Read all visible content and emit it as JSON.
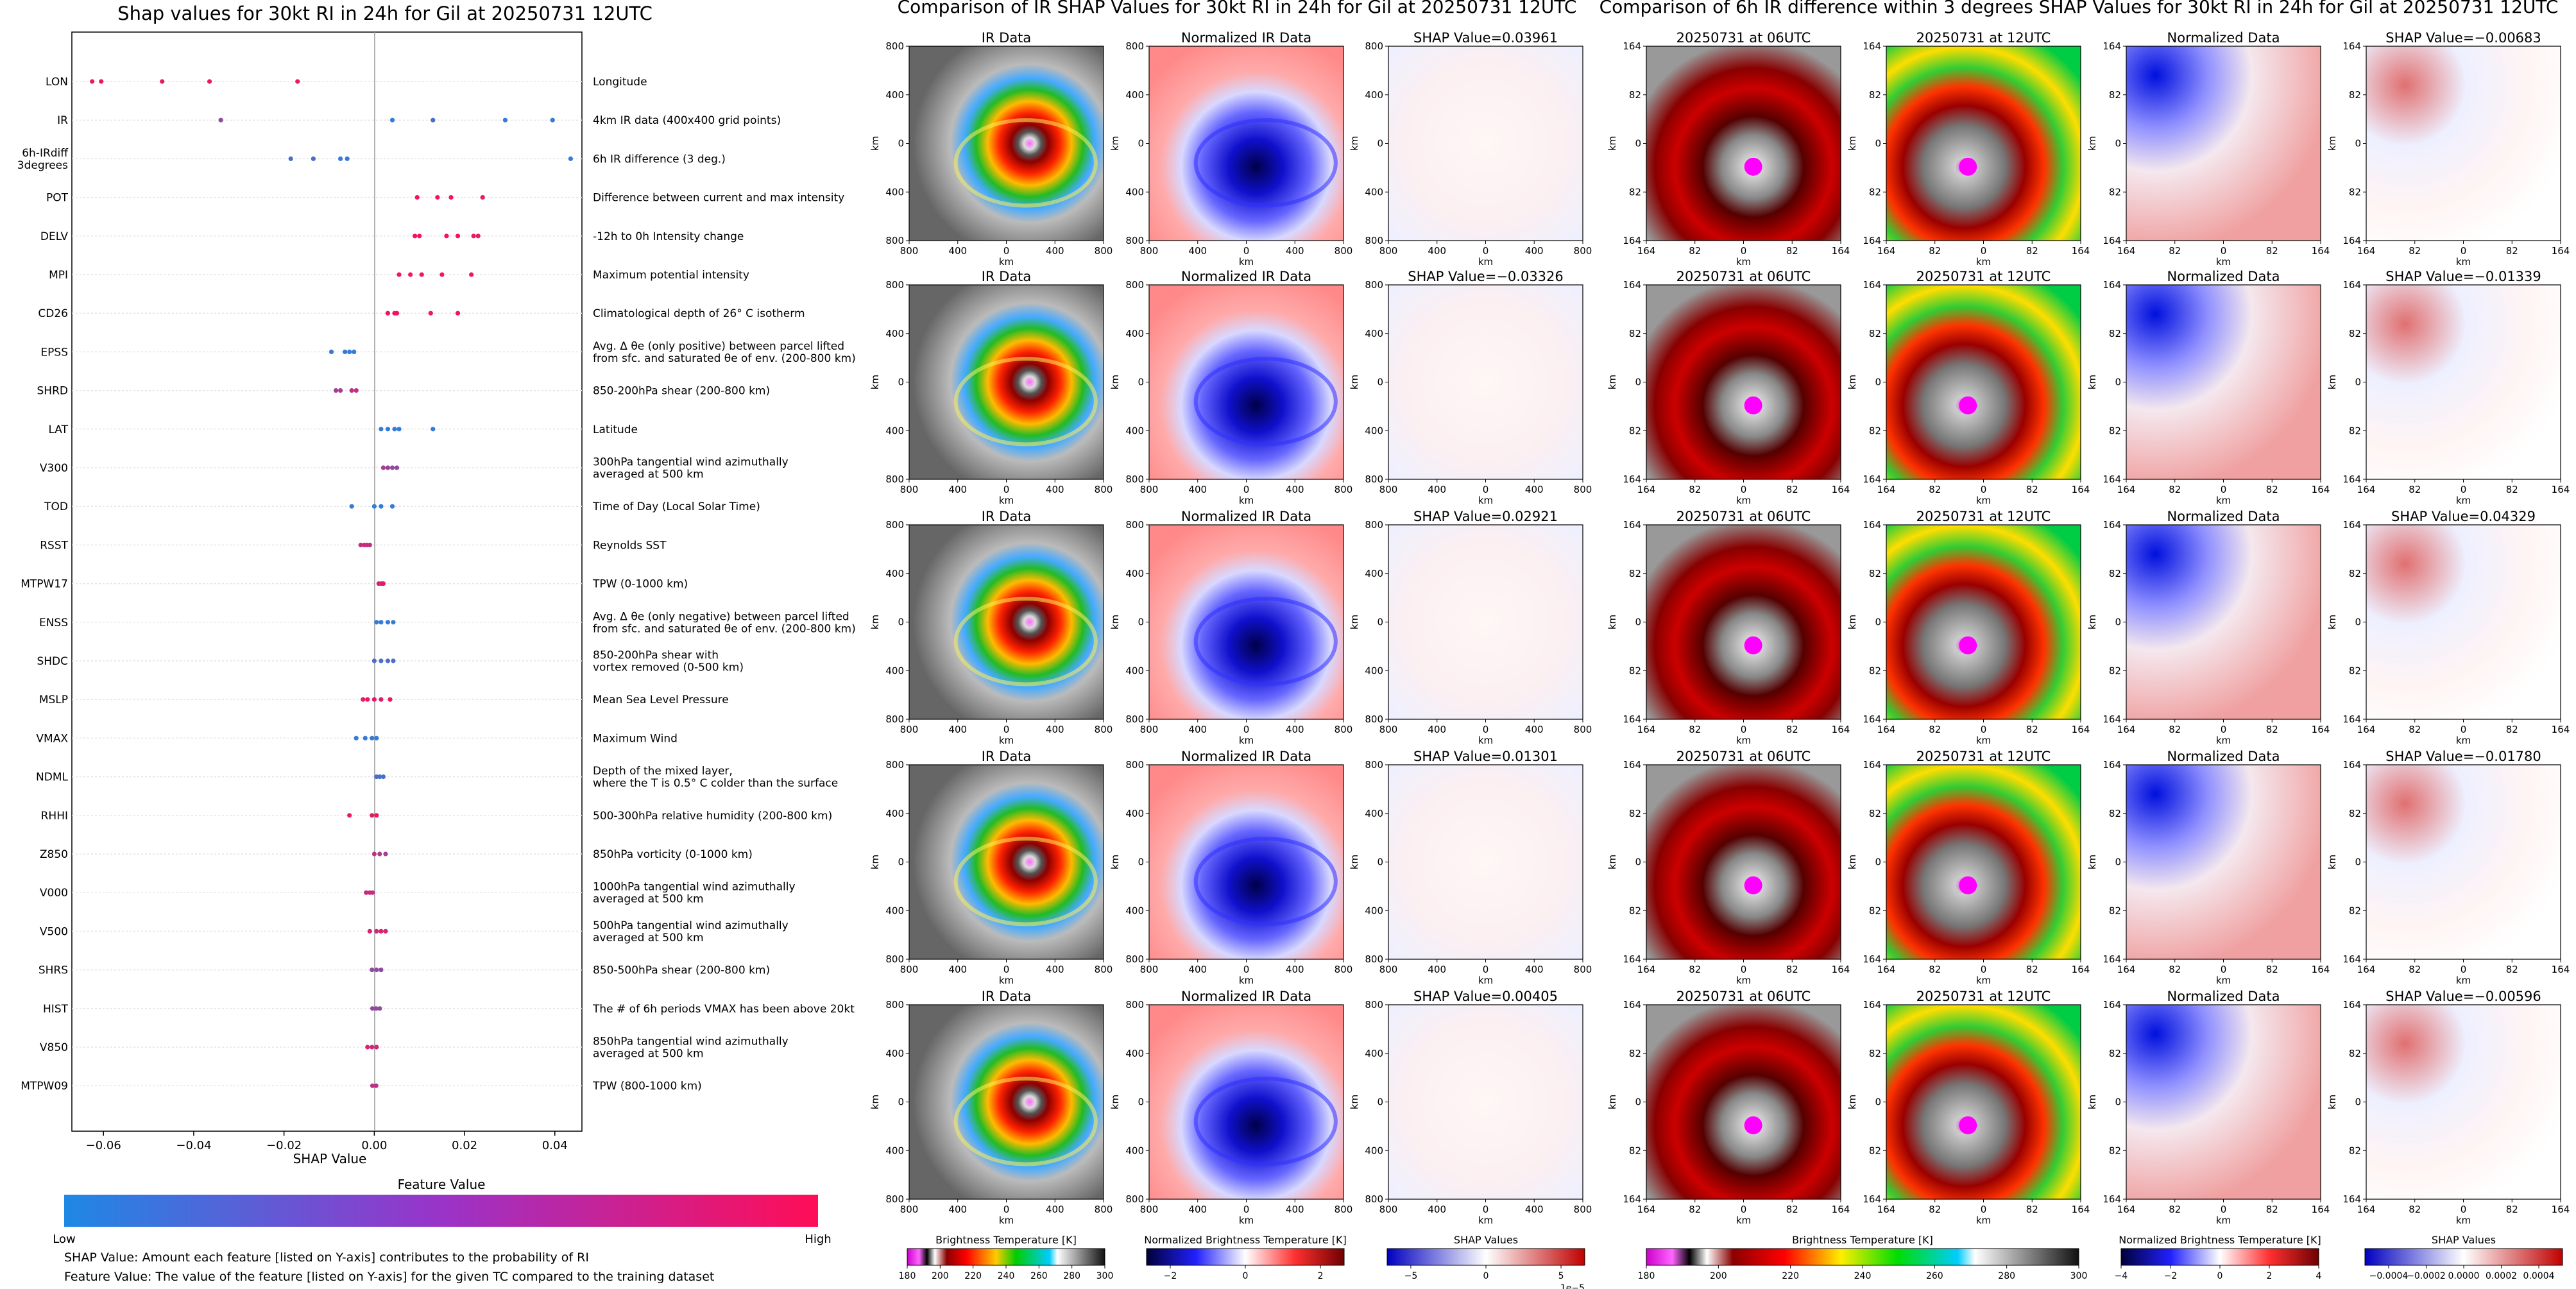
{
  "beeswarm": {
    "title": "Shap values for 30kt RI in 24h for Gil at 20250731 12UTC",
    "xlabel": "SHAP Value",
    "xticks": [
      "−0.06",
      "−0.04",
      "−0.02",
      "0.00",
      "0.02",
      "0.04"
    ],
    "colorbar_title": "Feature Value",
    "colorbar_low": "Low",
    "colorbar_high": "High",
    "note_line1": "SHAP Value: Amount each feature [listed on Y-axis] contributes to the probability of RI",
    "note_line2": "Feature Value: The value of the feature [listed on Y-axis] for the given TC compared to the training dataset",
    "colors": {
      "low": "#1E88E5",
      "high": "#FF0D57"
    }
  },
  "chart_data": {
    "type": "scatter",
    "title": "Shap values for 30kt RI in 24h for Gil at 20250731 12UTC",
    "xlabel": "SHAP Value",
    "xlim": [
      -0.067,
      0.046
    ],
    "features": [
      {
        "code": "LON",
        "desc": "Longitude",
        "points": [
          [
            -0.0625,
            0.9
          ],
          [
            -0.0605,
            0.9
          ],
          [
            -0.047,
            0.9
          ],
          [
            -0.0365,
            0.9
          ],
          [
            -0.017,
            0.9
          ]
        ]
      },
      {
        "code": "IR",
        "desc": "4km IR data (400x400 grid points)",
        "points": [
          [
            -0.034,
            0.5
          ],
          [
            0.004,
            0.1
          ],
          [
            0.013,
            0.2
          ],
          [
            0.029,
            0.1
          ],
          [
            0.0395,
            0.1
          ]
        ]
      },
      {
        "code": "6h-IRdiff\n3degrees",
        "desc": "6h IR difference (3 deg.)",
        "points": [
          [
            -0.0185,
            0.2
          ],
          [
            -0.0135,
            0.2
          ],
          [
            -0.0075,
            0.1
          ],
          [
            -0.006,
            0.15
          ],
          [
            0.0435,
            0.1
          ]
        ]
      },
      {
        "code": "POT",
        "desc": "Difference between current and max intensity",
        "points": [
          [
            0.0095,
            0.95
          ],
          [
            0.014,
            0.95
          ],
          [
            0.017,
            0.95
          ],
          [
            0.024,
            0.9
          ]
        ]
      },
      {
        "code": "DELV",
        "desc": "-12h to 0h Intensity change",
        "points": [
          [
            0.009,
            0.95
          ],
          [
            0.01,
            0.95
          ],
          [
            0.016,
            0.95
          ],
          [
            0.0185,
            0.95
          ],
          [
            0.022,
            0.9
          ],
          [
            0.023,
            0.9
          ]
        ]
      },
      {
        "code": "MPI",
        "desc": "Maximum potential intensity",
        "points": [
          [
            0.0055,
            0.95
          ],
          [
            0.008,
            0.95
          ],
          [
            0.0105,
            0.95
          ],
          [
            0.015,
            0.95
          ],
          [
            0.0215,
            0.95
          ]
        ]
      },
      {
        "code": "CD26",
        "desc": "Climatological depth of 26° C isotherm",
        "points": [
          [
            0.003,
            0.95
          ],
          [
            0.0045,
            0.95
          ],
          [
            0.005,
            0.95
          ],
          [
            0.0125,
            0.9
          ],
          [
            0.0185,
            0.95
          ]
        ]
      },
      {
        "code": "EPSS",
        "desc": "Avg. Δ θe (only positive) between parcel lifted\nfrom sfc. and saturated θe of env. (200-800 km)",
        "points": [
          [
            -0.0095,
            0.1
          ],
          [
            -0.0065,
            0.1
          ],
          [
            -0.0055,
            0.1
          ],
          [
            -0.0045,
            0.1
          ]
        ]
      },
      {
        "code": "SHRD",
        "desc": "850-200hPa shear (200-800 km)",
        "points": [
          [
            -0.0085,
            0.6
          ],
          [
            -0.0075,
            0.6
          ],
          [
            -0.005,
            0.7
          ],
          [
            -0.004,
            0.7
          ]
        ]
      },
      {
        "code": "LAT",
        "desc": "Latitude",
        "points": [
          [
            0.0015,
            0.1
          ],
          [
            0.003,
            0.1
          ],
          [
            0.0045,
            0.1
          ],
          [
            0.0055,
            0.1
          ],
          [
            0.013,
            0.1
          ]
        ]
      },
      {
        "code": "V300",
        "desc": "300hPa tangential wind azimuthally\naveraged at 500 km",
        "points": [
          [
            0.002,
            0.6
          ],
          [
            0.003,
            0.6
          ],
          [
            0.004,
            0.5
          ],
          [
            0.005,
            0.5
          ]
        ]
      },
      {
        "code": "TOD",
        "desc": "Time of Day (Local Solar Time)",
        "points": [
          [
            -0.005,
            0.1
          ],
          [
            0.0,
            0.1
          ],
          [
            0.0015,
            0.1
          ],
          [
            0.004,
            0.1
          ]
        ]
      },
      {
        "code": "RSST",
        "desc": "Reynolds SST",
        "points": [
          [
            -0.003,
            0.75
          ],
          [
            -0.0022,
            0.75
          ],
          [
            -0.0016,
            0.75
          ],
          [
            -0.001,
            0.75
          ]
        ]
      },
      {
        "code": "MTPW17",
        "desc": "TPW (0-1000 km)",
        "points": [
          [
            0.001,
            0.85
          ],
          [
            0.0016,
            0.85
          ],
          [
            0.002,
            0.85
          ]
        ]
      },
      {
        "code": "ENSS",
        "desc": "Avg. Δ θe (only negative) between parcel lifted\nfrom sfc. and saturated θe of env. (200-800 km)",
        "points": [
          [
            0.0005,
            0.1
          ],
          [
            0.0015,
            0.1
          ],
          [
            0.003,
            0.1
          ],
          [
            0.0042,
            0.1
          ]
        ]
      },
      {
        "code": "SHDC",
        "desc": "850-200hPa shear with\nvortex removed (0-500 km)",
        "points": [
          [
            0.0,
            0.2
          ],
          [
            0.0015,
            0.2
          ],
          [
            0.003,
            0.2
          ],
          [
            0.0042,
            0.2
          ]
        ]
      },
      {
        "code": "MSLP",
        "desc": "Mean Sea Level Pressure",
        "points": [
          [
            -0.0025,
            0.9
          ],
          [
            -0.0015,
            0.9
          ],
          [
            0.0,
            0.9
          ],
          [
            0.0015,
            0.9
          ],
          [
            0.0035,
            0.9
          ]
        ]
      },
      {
        "code": "VMAX",
        "desc": "Maximum Wind",
        "points": [
          [
            -0.004,
            0.1
          ],
          [
            -0.002,
            0.1
          ],
          [
            -0.0005,
            0.1
          ],
          [
            0.0005,
            0.1
          ]
        ]
      },
      {
        "code": "NDML",
        "desc": "Depth of the mixed layer,\nwhere the T is 0.5° C colder than the surface",
        "points": [
          [
            0.0005,
            0.2
          ],
          [
            0.0012,
            0.2
          ],
          [
            0.002,
            0.2
          ]
        ]
      },
      {
        "code": "RHHI",
        "desc": "500-300hPa relative humidity (200-800 km)",
        "points": [
          [
            -0.0055,
            0.9
          ],
          [
            -0.0005,
            0.9
          ],
          [
            0.0005,
            0.9
          ]
        ]
      },
      {
        "code": "Z850",
        "desc": "850hPa vorticity (0-1000 km)",
        "points": [
          [
            0.0,
            0.7
          ],
          [
            0.0012,
            0.6
          ],
          [
            0.0025,
            0.6
          ]
        ]
      },
      {
        "code": "V000",
        "desc": "1000hPa tangential wind azimuthally\naveraged at 500 km",
        "points": [
          [
            -0.0018,
            0.75
          ],
          [
            -0.001,
            0.75
          ],
          [
            -0.0004,
            0.75
          ]
        ]
      },
      {
        "code": "V500",
        "desc": "500hPa tangential wind azimuthally\naveraged at 500 km",
        "points": [
          [
            -0.001,
            0.8
          ],
          [
            0.0005,
            0.8
          ],
          [
            0.0015,
            0.8
          ],
          [
            0.0025,
            0.8
          ]
        ]
      },
      {
        "code": "SHRS",
        "desc": "850-500hPa shear (200-800 km)",
        "points": [
          [
            -0.0005,
            0.5
          ],
          [
            0.0005,
            0.5
          ],
          [
            0.0015,
            0.5
          ]
        ]
      },
      {
        "code": "HIST",
        "desc": "The # of 6h periods VMAX has been above 20kt",
        "points": [
          [
            -0.0004,
            0.5
          ],
          [
            0.0004,
            0.5
          ],
          [
            0.0012,
            0.5
          ]
        ]
      },
      {
        "code": "V850",
        "desc": "850hPa tangential wind azimuthally\naveraged at 500 km",
        "points": [
          [
            -0.0015,
            0.8
          ],
          [
            -0.0005,
            0.8
          ],
          [
            0.0005,
            0.8
          ]
        ]
      },
      {
        "code": "MTPW09",
        "desc": "TPW (800-1000 km)",
        "points": [
          [
            -0.0004,
            0.7
          ],
          [
            0.0004,
            0.7
          ]
        ]
      }
    ]
  },
  "panels": {
    "ir_group_title": "Comparison of IR SHAP Values for 30kt RI in 24h for Gil at 20250731 12UTC",
    "diff_group_title": "Comparison of 6h IR difference within 3 degrees SHAP Values for 30kt RI in 24h for Gil at 20250731 12UTC",
    "col_titles": [
      "IR Data",
      "Normalized IR Data",
      "SHAP",
      "20250731 at 06UTC",
      "20250731 at 12UTC",
      "Normalized Data",
      "SHAP"
    ],
    "shap_prefix": "SHAP Value=",
    "shap_ir": [
      "0.03961",
      "−0.03326",
      "0.02921",
      "0.01301",
      "0.00405"
    ],
    "shap_diff": [
      "−0.00683",
      "−0.01339",
      "0.04329",
      "−0.01780",
      "−0.00596"
    ],
    "ir_ticks": [
      "800",
      "400",
      "0",
      "400",
      "800"
    ],
    "diff_ticks": [
      "164",
      "82",
      "0",
      "82",
      "164"
    ],
    "axis_unit": "km"
  },
  "colorbars": [
    {
      "label": "Brightness Temperature [K]",
      "ticks": [
        "180",
        "200",
        "220",
        "240",
        "260",
        "280",
        "300"
      ]
    },
    {
      "label": "Normalized Brightness Temperature [K]",
      "ticks": [
        "−2",
        "0",
        "2"
      ]
    },
    {
      "label": "SHAP Values",
      "ticks": [
        "−5",
        "0",
        "5"
      ],
      "exponent": "1e−5"
    },
    {
      "label": "Brightness Temperature [K]",
      "ticks": [
        "180",
        "200",
        "220",
        "240",
        "260",
        "280",
        "300"
      ]
    },
    {
      "label": "Normalized Brightness Temperature [K]",
      "ticks": [
        "−4",
        "−2",
        "0",
        "2",
        "4"
      ]
    },
    {
      "label": "SHAP Values",
      "ticks": [
        "−0.0004",
        "−0.0002",
        "0.0000",
        "0.0002",
        "0.0004"
      ]
    }
  ]
}
